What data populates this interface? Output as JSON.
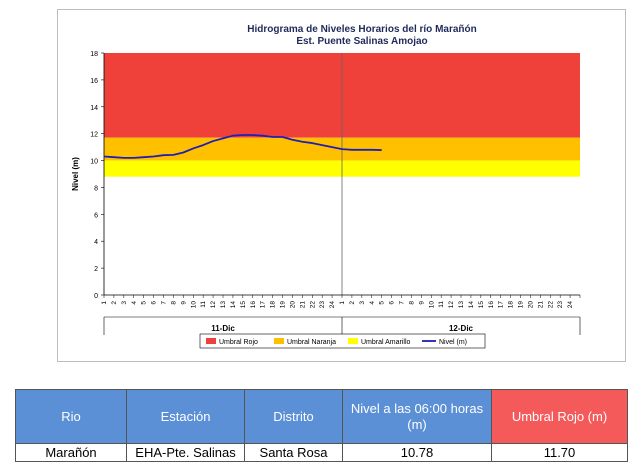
{
  "chart_data": {
    "type": "line",
    "title": "Hidrograma de Niveles Horarios del río Marañón",
    "subtitle": "Est. Puente Salinas Amojao",
    "ylabel": "Nivel (m)",
    "ylim": [
      0,
      18
    ],
    "yticks": [
      0,
      2,
      4,
      6,
      8,
      10,
      12,
      14,
      16,
      18
    ],
    "x_ticks": [
      "1",
      "2",
      "3",
      "4",
      "5",
      "6",
      "7",
      "8",
      "9",
      "10",
      "11",
      "12",
      "13",
      "14",
      "15",
      "16",
      "17",
      "18",
      "19",
      "20",
      "21",
      "22",
      "23",
      "24",
      "1",
      "2",
      "3",
      "4",
      "5",
      "6",
      "7",
      "8",
      "9",
      "10",
      "11",
      "12",
      "13",
      "14",
      "15",
      "16",
      "17",
      "18",
      "19",
      "20",
      "21",
      "22",
      "23",
      "24"
    ],
    "day_labels": [
      "11-Dic",
      "12-Dic"
    ],
    "thresholds": [
      {
        "name": "Umbral Rojo",
        "from": 11.7,
        "to": 18,
        "color": "#f0403a"
      },
      {
        "name": "Umbral Naranja",
        "from": 10.0,
        "to": 11.7,
        "color": "#ffc000"
      },
      {
        "name": "Umbral Amarillo",
        "from": 8.8,
        "to": 10.0,
        "color": "#ffff00"
      }
    ],
    "series": [
      {
        "name": "Nivel (m)",
        "color": "#1f1fb4",
        "x": [
          1,
          2,
          3,
          4,
          5,
          6,
          7,
          8,
          9,
          10,
          11,
          12,
          13,
          14,
          15,
          16,
          17,
          18,
          19,
          20,
          21,
          22,
          23,
          24,
          25,
          26,
          27,
          28,
          29
        ],
        "values": [
          10.3,
          10.25,
          10.2,
          10.2,
          10.25,
          10.3,
          10.4,
          10.42,
          10.6,
          10.9,
          11.15,
          11.45,
          11.65,
          11.85,
          11.9,
          11.9,
          11.85,
          11.75,
          11.75,
          11.55,
          11.4,
          11.3,
          11.15,
          11.0,
          10.85,
          10.8,
          10.8,
          10.8,
          10.78
        ]
      }
    ],
    "legend": [
      "Umbral Rojo",
      "Umbral Naranja",
      "Umbral Amarillo",
      "Nivel (m)"
    ],
    "legend_position": "bottom"
  },
  "table": {
    "headers": [
      "Rio",
      "Estación",
      "Distrito",
      "Nivel a las 06:00 horas (m)",
      "Umbral Rojo (m)"
    ],
    "rows": [
      [
        "Marañón",
        "EHA-Pte. Salinas",
        "Santa Rosa",
        "10.78",
        "11.70"
      ]
    ]
  }
}
